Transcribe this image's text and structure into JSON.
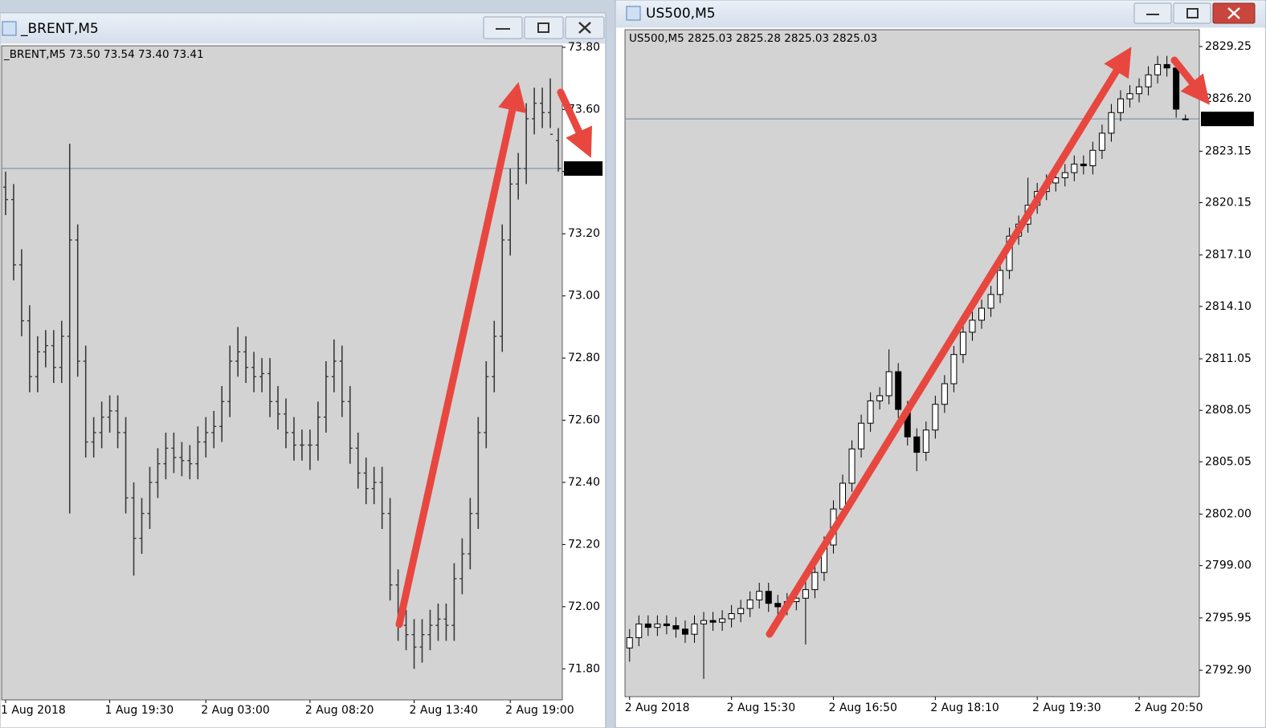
{
  "chart_data": [
    {
      "type": "ohlc",
      "title": "_BRENT,M5",
      "info": "_BRENT,M5  73.50 73.54 73.40 73.41",
      "last": 73.41,
      "xlim": [
        -0.5,
        69.5
      ],
      "ylim": [
        71.7,
        73.805
      ],
      "xticks": [
        {
          "value": 0,
          "label": "1 Aug 2018"
        },
        {
          "value": 13,
          "label": "1 Aug 19:30"
        },
        {
          "value": 25,
          "label": "2 Aug 03:00"
        },
        {
          "value": 38,
          "label": "2 Aug 08:20"
        },
        {
          "value": 51,
          "label": "2 Aug 13:40"
        },
        {
          "value": 63,
          "label": "2 Aug 19:00"
        }
      ],
      "yticks": [
        {
          "value": 73.8,
          "label": "73.80"
        },
        {
          "value": 73.6,
          "label": "73.60"
        },
        {
          "value": 73.4,
          "label": "73.40"
        },
        {
          "value": 73.2,
          "label": "73.20"
        },
        {
          "value": 73.0,
          "label": "73.00"
        },
        {
          "value": 72.8,
          "label": "72.80"
        },
        {
          "value": 72.6,
          "label": "72.60"
        },
        {
          "value": 72.4,
          "label": "72.40"
        },
        {
          "value": 72.2,
          "label": "72.20"
        },
        {
          "value": 72.0,
          "label": "72.00"
        },
        {
          "value": 71.8,
          "label": "71.80"
        }
      ],
      "open": [
        73.35,
        73.31,
        73.1,
        72.92,
        72.74,
        72.82,
        72.84,
        72.77,
        72.87,
        73.18,
        72.79,
        72.53,
        72.56,
        72.61,
        72.63,
        72.56,
        72.35,
        72.22,
        72.3,
        72.4,
        72.46,
        72.51,
        72.48,
        72.47,
        72.46,
        72.53,
        72.56,
        72.58,
        72.66,
        72.79,
        72.82,
        72.77,
        72.74,
        72.75,
        72.66,
        72.62,
        72.56,
        72.52,
        72.52,
        72.52,
        72.61,
        72.74,
        72.79,
        72.66,
        72.51,
        72.43,
        72.38,
        72.4,
        72.3,
        72.07,
        71.94,
        71.91,
        71.87,
        71.91,
        71.94,
        71.96,
        71.94,
        72.09,
        72.17,
        72.3,
        72.56,
        72.74,
        72.87,
        73.18,
        73.36,
        73.41,
        73.57,
        73.62,
        73.59,
        73.5
      ],
      "high": [
        73.4,
        73.36,
        73.15,
        72.97,
        72.87,
        72.89,
        72.89,
        72.92,
        73.49,
        73.23,
        72.84,
        72.61,
        72.66,
        72.68,
        72.68,
        72.61,
        72.4,
        72.35,
        72.45,
        72.51,
        72.56,
        72.56,
        72.53,
        72.52,
        72.58,
        72.61,
        72.63,
        72.71,
        72.84,
        72.9,
        72.87,
        72.82,
        72.8,
        72.8,
        72.71,
        72.67,
        72.61,
        72.57,
        72.57,
        72.66,
        72.79,
        72.86,
        72.84,
        72.71,
        72.56,
        72.48,
        72.45,
        72.45,
        72.35,
        72.12,
        71.99,
        71.96,
        71.96,
        71.99,
        72.01,
        72.01,
        72.14,
        72.22,
        72.35,
        72.61,
        72.79,
        72.92,
        73.23,
        73.41,
        73.46,
        73.62,
        73.67,
        73.67,
        73.7,
        73.54
      ],
      "low": [
        73.26,
        73.05,
        72.87,
        72.69,
        72.69,
        72.77,
        72.72,
        72.72,
        72.3,
        72.74,
        72.48,
        72.48,
        72.51,
        72.56,
        72.51,
        72.3,
        72.1,
        72.17,
        72.25,
        72.35,
        72.41,
        72.43,
        72.42,
        72.41,
        72.41,
        72.48,
        72.51,
        72.53,
        72.61,
        72.74,
        72.72,
        72.69,
        72.69,
        72.61,
        72.57,
        72.51,
        72.47,
        72.47,
        72.44,
        72.47,
        72.56,
        72.69,
        72.61,
        72.46,
        72.38,
        72.33,
        72.33,
        72.25,
        72.02,
        71.89,
        71.86,
        71.8,
        71.82,
        71.86,
        71.89,
        71.89,
        71.89,
        72.04,
        72.12,
        72.25,
        72.51,
        72.69,
        72.82,
        73.13,
        73.31,
        73.36,
        73.52,
        73.54,
        73.54,
        73.4
      ],
      "close": [
        73.31,
        73.1,
        72.92,
        72.74,
        72.82,
        72.84,
        72.77,
        72.87,
        73.18,
        72.79,
        72.53,
        72.56,
        72.61,
        72.63,
        72.56,
        72.35,
        72.22,
        72.3,
        72.4,
        72.46,
        72.51,
        72.48,
        72.47,
        72.46,
        72.53,
        72.56,
        72.58,
        72.66,
        72.79,
        72.82,
        72.77,
        72.74,
        72.75,
        72.66,
        72.62,
        72.56,
        72.52,
        72.52,
        72.52,
        72.61,
        72.74,
        72.79,
        72.66,
        72.51,
        72.43,
        72.38,
        72.4,
        72.3,
        72.07,
        71.94,
        71.91,
        71.87,
        71.91,
        71.94,
        71.96,
        71.94,
        72.09,
        72.17,
        72.3,
        72.56,
        72.74,
        72.87,
        73.18,
        73.36,
        73.41,
        73.57,
        73.62,
        73.59,
        73.52,
        73.41
      ]
    },
    {
      "type": "candlestick",
      "title": "US500,M5",
      "info": "US500,M5  2825.03 2825.28 2825.03 2825.03",
      "last": 2825.03,
      "xlim": [
        -0.5,
        61.5
      ],
      "ylim": [
        2791.36,
        2830.23
      ],
      "xticks": [
        {
          "value": 0,
          "label": "2 Aug 2018"
        },
        {
          "value": 11,
          "label": "2 Aug 15:30"
        },
        {
          "value": 22,
          "label": "2 Aug 16:50"
        },
        {
          "value": 33,
          "label": "2 Aug 18:10"
        },
        {
          "value": 44,
          "label": "2 Aug 19:30"
        },
        {
          "value": 55,
          "label": "2 Aug 20:50"
        }
      ],
      "yticks": [
        2829.25,
        {
          "value": 2826.2,
          "label": "2826.20"
        },
        2823.15,
        2820.15,
        {
          "value": 2817.1,
          "label": "2817.10"
        },
        {
          "value": 2814.1,
          "label": "2814.10"
        },
        2811.05,
        2808.05,
        2805.05,
        {
          "value": 2802,
          "label": "2802.00"
        },
        {
          "value": 2799,
          "label": "2799.00"
        },
        2795.95,
        {
          "value": 2792.9,
          "label": "2792.90"
        }
      ],
      "open": [
        2794.2,
        2794.8,
        2795.6,
        2795.4,
        2795.6,
        2795.5,
        2795.3,
        2795.0,
        2795.6,
        2795.8,
        2795.7,
        2795.9,
        2796.2,
        2796.5,
        2797.0,
        2797.5,
        2796.8,
        2796.6,
        2796.9,
        2797.1,
        2797.6,
        2798.6,
        2800.2,
        2802.3,
        2803.8,
        2805.8,
        2807.3,
        2808.6,
        2808.9,
        2810.3,
        2808.1,
        2806.5,
        2805.6,
        2806.9,
        2808.4,
        2809.6,
        2811.3,
        2812.6,
        2813.3,
        2814.0,
        2814.8,
        2816.2,
        2818.2,
        2818.9,
        2820.0,
        2820.8,
        2821.3,
        2821.6,
        2821.9,
        2822.4,
        2822.3,
        2823.2,
        2824.2,
        2825.4,
        2826.2,
        2826.5,
        2826.9,
        2827.6,
        2828.2,
        2828.0,
        2825.03
      ],
      "high": [
        2795.3,
        2796.1,
        2796.1,
        2796.1,
        2796.1,
        2796.0,
        2795.8,
        2796.1,
        2796.3,
        2796.3,
        2796.4,
        2796.7,
        2797.0,
        2797.5,
        2798.0,
        2798.0,
        2797.3,
        2797.4,
        2797.6,
        2798.1,
        2799.1,
        2800.7,
        2802.8,
        2804.3,
        2806.3,
        2807.8,
        2809.1,
        2809.4,
        2811.6,
        2810.8,
        2808.6,
        2807.0,
        2807.4,
        2808.9,
        2810.1,
        2811.8,
        2813.1,
        2813.8,
        2814.5,
        2815.3,
        2816.7,
        2818.7,
        2819.4,
        2821.6,
        2821.3,
        2821.8,
        2822.1,
        2822.4,
        2822.9,
        2822.9,
        2823.7,
        2824.7,
        2825.9,
        2826.7,
        2827.0,
        2827.4,
        2828.1,
        2828.7,
        2828.7,
        2828.3,
        2825.28
      ],
      "low": [
        2793.4,
        2794.3,
        2794.9,
        2794.9,
        2795.0,
        2794.8,
        2794.5,
        2794.5,
        2792.4,
        2795.2,
        2795.2,
        2795.4,
        2795.7,
        2796.0,
        2796.5,
        2796.3,
        2796.1,
        2796.1,
        2796.4,
        2794.4,
        2797.1,
        2798.1,
        2799.7,
        2801.8,
        2803.3,
        2805.3,
        2806.8,
        2808.1,
        2808.4,
        2807.6,
        2806.0,
        2804.5,
        2805.1,
        2806.4,
        2807.9,
        2809.1,
        2810.8,
        2812.1,
        2812.8,
        2813.5,
        2814.3,
        2815.7,
        2817.7,
        2818.4,
        2819.5,
        2820.3,
        2820.8,
        2821.1,
        2821.4,
        2821.8,
        2821.8,
        2822.7,
        2823.7,
        2824.9,
        2825.7,
        2826.0,
        2826.4,
        2827.1,
        2827.5,
        2825.1,
        2825.03
      ],
      "close": [
        2794.8,
        2795.6,
        2795.4,
        2795.6,
        2795.5,
        2795.3,
        2795.0,
        2795.6,
        2795.8,
        2795.7,
        2795.9,
        2796.2,
        2796.5,
        2797.0,
        2797.5,
        2796.8,
        2796.6,
        2796.9,
        2797.1,
        2797.6,
        2798.6,
        2800.2,
        2802.3,
        2803.8,
        2805.8,
        2807.3,
        2808.6,
        2808.9,
        2810.3,
        2808.1,
        2806.5,
        2805.6,
        2806.9,
        2808.4,
        2809.6,
        2811.3,
        2812.6,
        2813.3,
        2814.0,
        2814.8,
        2816.2,
        2818.2,
        2818.9,
        2820.0,
        2820.8,
        2821.3,
        2821.6,
        2821.9,
        2822.4,
        2822.3,
        2823.2,
        2824.2,
        2825.4,
        2826.2,
        2826.5,
        2826.9,
        2827.6,
        2828.2,
        2828.0,
        2825.6,
        2825.03
      ]
    }
  ]
}
